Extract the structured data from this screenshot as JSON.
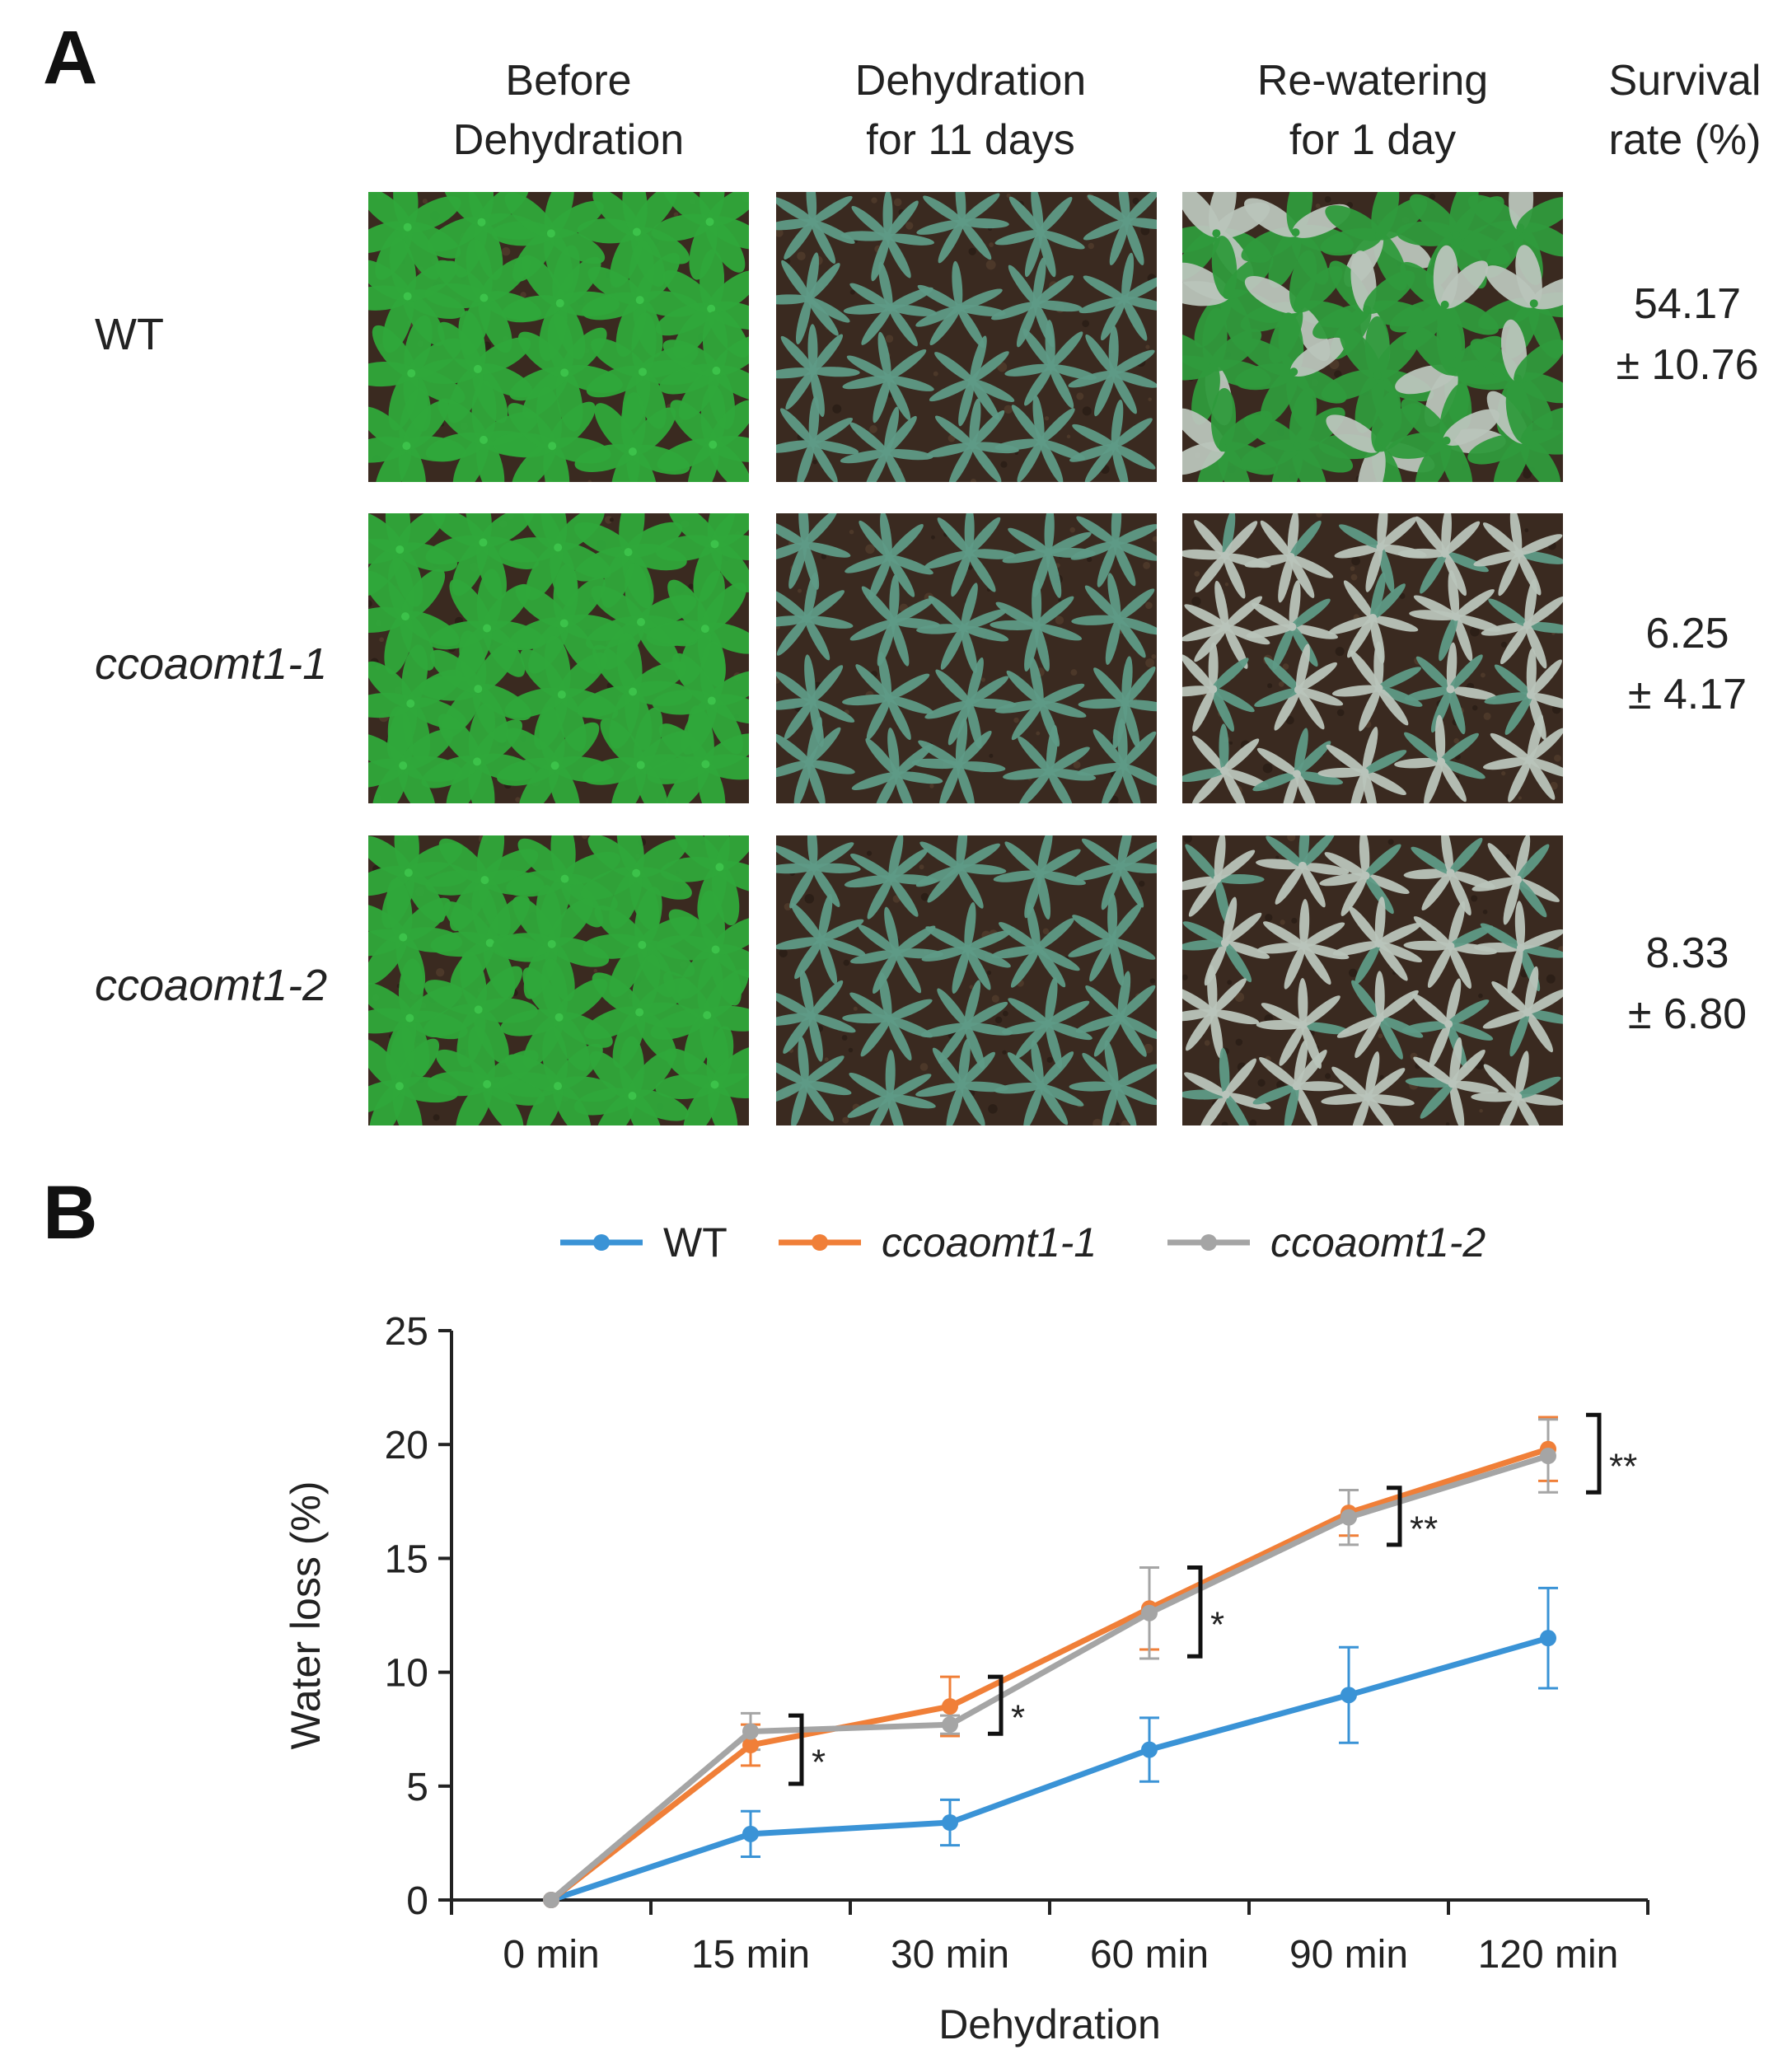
{
  "panel_a": {
    "letter": "A",
    "columns": [
      {
        "line1": "Before",
        "line2": "Dehydration"
      },
      {
        "line1": "Dehydration",
        "line2": "for 11 days"
      },
      {
        "line1": "Re-watering",
        "line2": "for 1 day"
      },
      {
        "line1": "Survival",
        "line2": "rate (%)"
      }
    ],
    "rows": [
      {
        "label": "WT",
        "italic": false,
        "survival_mean": "54.17",
        "survival_err": "± 10.76"
      },
      {
        "label": "ccoaomt1-1",
        "italic": true,
        "survival_mean": "6.25",
        "survival_err": "± 4.17"
      },
      {
        "label": "ccoaomt1-2",
        "italic": true,
        "survival_mean": "8.33",
        "survival_err": "± 6.80"
      }
    ],
    "photo_states": [
      [
        "healthy",
        "dry",
        "recovered"
      ],
      [
        "healthy",
        "dry",
        "dead"
      ],
      [
        "healthy",
        "dry",
        "dead"
      ]
    ],
    "colors": {
      "soil": "#3a2a20",
      "healthy_leaf": "#2fa83a",
      "dry_leaf": "#5e9a86",
      "dead_leaf": "#b9c4bb",
      "recovered_leaf": "#2f9a3c"
    }
  },
  "panel_b": {
    "letter": "B"
  },
  "chart_data": {
    "type": "line",
    "categories": [
      "0 min",
      "15 min",
      "30 min",
      "60 min",
      "90 min",
      "120 min"
    ],
    "xlabel": "Dehydration",
    "ylabel": "Water loss (%)",
    "ylim": [
      0,
      25
    ],
    "yticks": [
      0,
      5,
      10,
      15,
      20,
      25
    ],
    "legend_placement": "top-center",
    "series": [
      {
        "name": "WT",
        "italic": false,
        "color": "#3a93d6",
        "values": [
          0,
          2.9,
          3.4,
          6.6,
          9.0,
          11.5
        ],
        "errors": [
          0,
          1.0,
          1.0,
          1.4,
          2.1,
          2.2
        ]
      },
      {
        "name": "ccoaomt1-1",
        "italic": true,
        "color": "#f07f38",
        "values": [
          0,
          6.8,
          8.5,
          12.8,
          17.0,
          19.8
        ],
        "errors": [
          0,
          0.9,
          1.3,
          1.8,
          1.0,
          1.4
        ]
      },
      {
        "name": "ccoaomt1-2",
        "italic": true,
        "color": "#a5a5a5",
        "values": [
          0,
          7.4,
          7.7,
          12.6,
          16.8,
          19.5
        ],
        "errors": [
          0,
          0.8,
          0.4,
          2.0,
          1.2,
          1.6
        ]
      }
    ],
    "significance": [
      {
        "category": "15 min",
        "low": 5.1,
        "high": 8.1,
        "label": "*"
      },
      {
        "category": "30 min",
        "low": 7.3,
        "high": 9.8,
        "label": "*"
      },
      {
        "category": "60 min",
        "low": 10.7,
        "high": 14.6,
        "label": "*"
      },
      {
        "category": "90 min",
        "low": 15.6,
        "high": 18.1,
        "label": "**"
      },
      {
        "category": "120 min",
        "low": 17.9,
        "high": 21.3,
        "label": "**"
      }
    ]
  }
}
